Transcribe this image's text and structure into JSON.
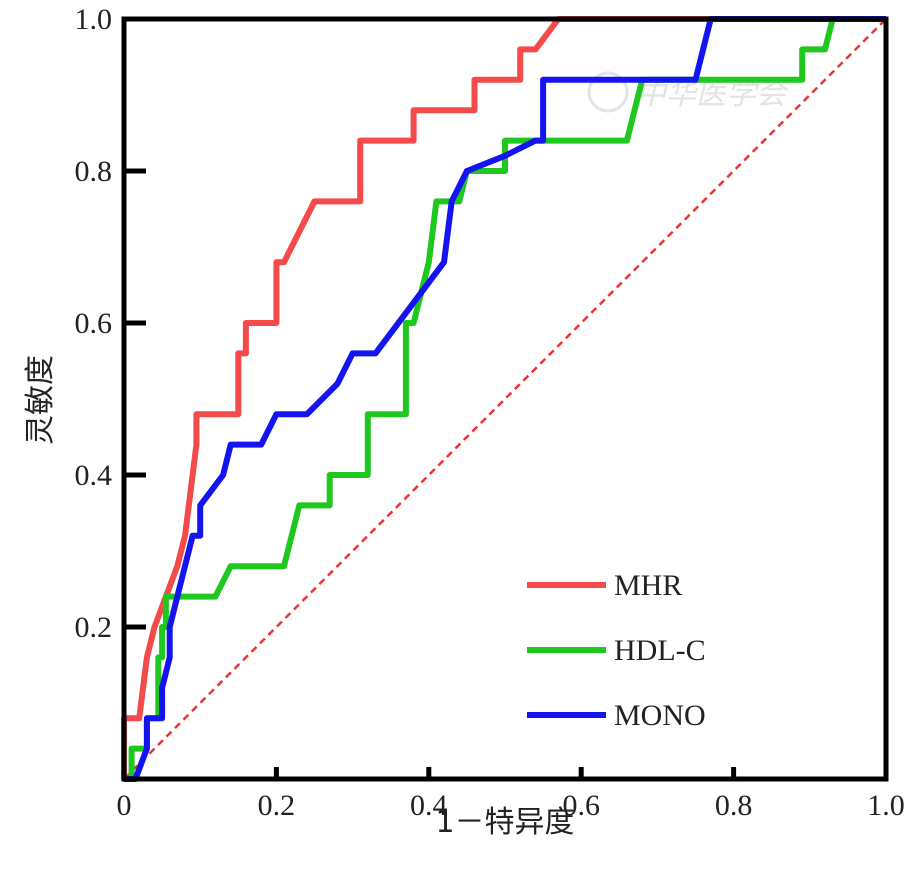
{
  "chart_data": {
    "type": "line",
    "xlabel": "1－特异度",
    "ylabel": "灵敏度",
    "xlim": [
      0,
      1
    ],
    "ylim": [
      0,
      1
    ],
    "xticks": [
      "0",
      "0.2",
      "0.4",
      "0.6",
      "0.8",
      "1.0"
    ],
    "yticks": [
      "0.2",
      "0.4",
      "0.6",
      "0.8",
      "1.0"
    ],
    "grid": false,
    "legend_position": "bottom-right",
    "watermark": "中华医学会",
    "reference_line": {
      "from": [
        0,
        0
      ],
      "to": [
        1,
        1
      ],
      "style": "dashed",
      "color": "#ee3333"
    },
    "series": [
      {
        "name": "MHR",
        "color": "#f34a4a",
        "x": [
          0.0,
          0.0,
          0.02,
          0.02,
          0.03,
          0.04,
          0.07,
          0.08,
          0.095,
          0.095,
          0.15,
          0.15,
          0.16,
          0.16,
          0.2,
          0.2,
          0.21,
          0.25,
          0.26,
          0.31,
          0.31,
          0.37,
          0.38,
          0.38,
          0.45,
          0.46,
          0.46,
          0.51,
          0.52,
          0.52,
          0.54,
          0.57,
          0.58,
          0.92,
          1.0
        ],
        "y": [
          0.0,
          0.08,
          0.08,
          0.08,
          0.16,
          0.2,
          0.28,
          0.32,
          0.44,
          0.48,
          0.48,
          0.56,
          0.56,
          0.6,
          0.6,
          0.68,
          0.68,
          0.76,
          0.76,
          0.76,
          0.84,
          0.84,
          0.84,
          0.88,
          0.88,
          0.88,
          0.92,
          0.92,
          0.92,
          0.96,
          0.96,
          1.0,
          1.0,
          1.0,
          1.0
        ]
      },
      {
        "name": "HDL-C",
        "color": "#1ec81e",
        "x": [
          0.0,
          0.01,
          0.01,
          0.03,
          0.03,
          0.045,
          0.045,
          0.05,
          0.05,
          0.055,
          0.055,
          0.06,
          0.12,
          0.14,
          0.21,
          0.23,
          0.27,
          0.27,
          0.29,
          0.31,
          0.32,
          0.32,
          0.37,
          0.37,
          0.38,
          0.38,
          0.4,
          0.41,
          0.41,
          0.44,
          0.45,
          0.5,
          0.5,
          0.52,
          0.66,
          0.68,
          0.89,
          0.89,
          0.92,
          0.93,
          1.0
        ],
        "y": [
          0.0,
          0.0,
          0.04,
          0.04,
          0.08,
          0.08,
          0.16,
          0.16,
          0.2,
          0.2,
          0.24,
          0.24,
          0.24,
          0.28,
          0.28,
          0.36,
          0.36,
          0.4,
          0.4,
          0.4,
          0.4,
          0.48,
          0.48,
          0.6,
          0.6,
          0.6,
          0.68,
          0.76,
          0.76,
          0.76,
          0.8,
          0.8,
          0.84,
          0.84,
          0.84,
          0.92,
          0.92,
          0.96,
          0.96,
          1.0,
          1.0
        ]
      },
      {
        "name": "MONO",
        "color": "#1414f0",
        "x": [
          0.0,
          0.015,
          0.03,
          0.03,
          0.05,
          0.05,
          0.06,
          0.06,
          0.07,
          0.09,
          0.1,
          0.1,
          0.13,
          0.14,
          0.15,
          0.15,
          0.17,
          0.18,
          0.2,
          0.24,
          0.28,
          0.3,
          0.32,
          0.33,
          0.39,
          0.42,
          0.43,
          0.45,
          0.5,
          0.54,
          0.55,
          0.55,
          0.75,
          0.77,
          1.0
        ],
        "y": [
          0.0,
          0.0,
          0.04,
          0.08,
          0.08,
          0.12,
          0.16,
          0.2,
          0.24,
          0.32,
          0.32,
          0.36,
          0.4,
          0.44,
          0.44,
          0.44,
          0.44,
          0.44,
          0.48,
          0.48,
          0.52,
          0.56,
          0.56,
          0.56,
          0.64,
          0.68,
          0.76,
          0.8,
          0.82,
          0.84,
          0.84,
          0.92,
          0.92,
          1.0,
          1.0
        ]
      }
    ]
  }
}
